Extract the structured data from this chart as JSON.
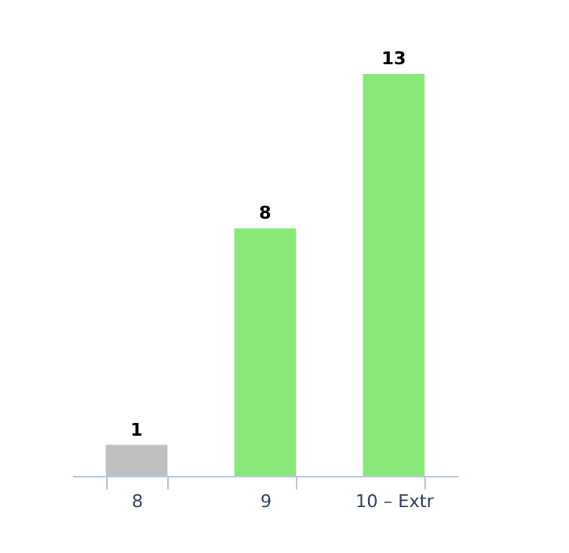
{
  "chart_data": {
    "type": "bar",
    "categories": [
      "8",
      "9",
      "10 – Extr"
    ],
    "values": [
      1,
      8,
      13
    ],
    "colors": [
      "#c0c0c0",
      "#88e878",
      "#88e878"
    ],
    "data_labels": true,
    "tick_labels": "x"
  }
}
